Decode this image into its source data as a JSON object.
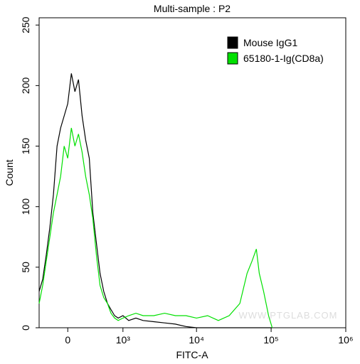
{
  "chart_data": {
    "type": "line",
    "title": "Multi-sample : P2",
    "x_label": "FITC-A",
    "y_label": "Count",
    "watermark": "WWW.PTGLAB.COM",
    "xscale": "arcsinh",
    "xlim": [
      -378,
      1000000
    ],
    "ylim": [
      0,
      256
    ],
    "xticks": [
      0,
      {
        "value": 1000,
        "label": "10³"
      },
      {
        "value": 10000,
        "label": "10⁴"
      },
      {
        "value": 100000,
        "label": "10⁵"
      },
      {
        "value": 1000000,
        "label": "10⁶"
      }
    ],
    "yticks": [
      0,
      50,
      100,
      150,
      200,
      250
    ],
    "legend": "top-right",
    "x": [
      -378,
      -322,
      -269,
      -219,
      -172,
      -127,
      -84,
      -42,
      0,
      42,
      84,
      127,
      172,
      219,
      269,
      322,
      378,
      441,
      509,
      587,
      666,
      755,
      853,
      1000,
      1206,
      1520,
      1908,
      2670,
      3732,
      5210,
      7240,
      10000,
      14100,
      19640,
      27370,
      38100,
      47600,
      55400,
      63300,
      69300,
      79200,
      92400,
      103300
    ],
    "series": [
      {
        "name": "Mouse IgG1",
        "color": "#000000",
        "values": [
          30,
          40,
          60,
          83,
          110,
          150,
          165,
          175,
          185,
          210,
          195,
          205,
          175,
          155,
          140,
          95,
          70,
          45,
          30,
          20,
          15,
          10,
          8,
          10,
          6,
          8,
          6,
          5,
          4,
          3,
          1,
          0,
          0,
          0,
          0,
          0,
          0,
          0,
          0,
          0,
          0,
          0,
          0
        ]
      },
      {
        "name": "65180-1-Ig(CD8a)",
        "color": "#00e000",
        "values": [
          20,
          35,
          55,
          75,
          95,
          110,
          125,
          150,
          140,
          165,
          150,
          160,
          145,
          125,
          110,
          90,
          60,
          35,
          25,
          20,
          12,
          8,
          6,
          8,
          10,
          12,
          10,
          10,
          12,
          10,
          10,
          8,
          10,
          6,
          10,
          20,
          45,
          55,
          65,
          45,
          30,
          10,
          0
        ]
      }
    ]
  }
}
